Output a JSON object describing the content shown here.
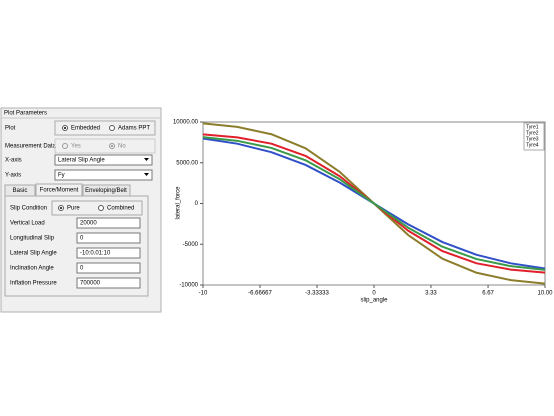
{
  "panel": {
    "title": "Plot Parameters",
    "plot": {
      "label": "Plot",
      "options": [
        "Embedded",
        "Adams PPT"
      ]
    },
    "measurement": {
      "label": "Measurement Data",
      "options": [
        "Yes",
        "No"
      ]
    },
    "x_axis": {
      "label": "X-axis",
      "value": "Lateral Slip Angle"
    },
    "y_axis": {
      "label": "Y-axis",
      "value": "Fy"
    },
    "tabs": [
      "Basic",
      "Force/Moment",
      "Enveloping/Belt"
    ],
    "slip": {
      "label": "Slip Condition",
      "options": [
        "Pure",
        "Combined"
      ]
    },
    "fields": [
      {
        "label": "Vertical Load",
        "value": "20000"
      },
      {
        "label": "Longitudinal Slip",
        "value": "0"
      },
      {
        "label": "Lateral Slip Angle",
        "value": "-10:0.01:10"
      },
      {
        "label": "Inclination Angle",
        "value": "0"
      },
      {
        "label": "Inflation Pressure",
        "value": "700000"
      }
    ]
  },
  "chart_data": {
    "type": "line",
    "x_label": "slip_angle",
    "y_label": "lateral_force",
    "x": [
      -10,
      -8,
      -6,
      -4,
      -2,
      0,
      2,
      4,
      6,
      8,
      10
    ],
    "xlim": [
      -10,
      10
    ],
    "ylim": [
      -10000,
      10000
    ],
    "xticks": [
      -10,
      -6.66667,
      -3.33333,
      0,
      3.33,
      6.67,
      {
        "value": 10,
        "label": "10.00"
      }
    ],
    "yticks": [
      {
        "value": 10000,
        "label": "10000.00"
      },
      {
        "value": 5000,
        "label": "5000.00"
      },
      0,
      -5000,
      -10000
    ],
    "series": [
      {
        "name": "Tyre1",
        "color": "#8b7d2a",
        "values": [
          9830,
          9400,
          8500,
          6770,
          3870,
          0,
          -3870,
          -6770,
          -8500,
          -9400,
          -9830
        ]
      },
      {
        "name": "Tyre2",
        "color": "#e0202a",
        "values": [
          8480,
          8110,
          7340,
          5840,
          3340,
          0,
          -3340,
          -5840,
          -7340,
          -8110,
          -8480
        ]
      },
      {
        "name": "Tyre3",
        "color": "#3050c8",
        "values": [
          7970,
          7340,
          6300,
          4730,
          2560,
          0,
          -2560,
          -4730,
          -6300,
          -7340,
          -7970
        ]
      },
      {
        "name": "Tyre4",
        "color": "#3a9a48",
        "values": [
          8140,
          7690,
          6820,
          5300,
          2970,
          0,
          -2970,
          -5300,
          -6820,
          -7690,
          -8140
        ]
      }
    ]
  }
}
